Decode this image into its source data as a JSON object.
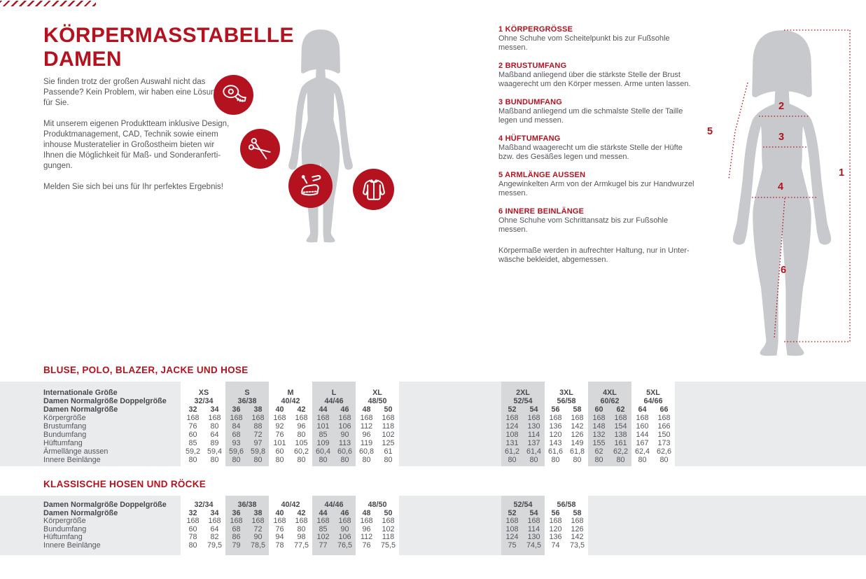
{
  "colors": {
    "accent_red": "#b5121f",
    "body_text": "#54565a",
    "silhouette_gray": "#c7c9cc",
    "band_light": "#eaebed",
    "band_shade": "#d6d8da"
  },
  "title": {
    "line1": "KÖRPERMASSTABELLE",
    "line2": "DAMEN"
  },
  "intro": {
    "p1": "Sie finden trotz der großen Auswahl nicht das\nPassende? Kein Problem, wir haben eine Lösung\nfür Sie.",
    "p2": "Mit unserem eigenen Produktteam inklusive Design,\nProduktmanagement, CAD, Technik sowie einem\ninhouse Musteratelier in Großostheim bieten wir\nIhnen die Möglichkeit für Maß- und Sonderanferti-\ngungen.",
    "p3": "Melden Sie sich bei uns für Ihr perfektes Ergebnis!"
  },
  "icons": [
    "measuring-tape-icon",
    "scissors-icon",
    "sewing-pattern-icon",
    "jacket-icon"
  ],
  "instructions": {
    "items": [
      {
        "num": "1",
        "title": "KÖRPERGRÖSSE",
        "text": "Ohne Schuhe vom Scheitelpunkt bis zur Fußsohle messen."
      },
      {
        "num": "2",
        "title": "BRUSTUMFANG",
        "text": "Maßband anliegend über die stärkste Stelle der Brust\nwaagerecht um den Körper messen. Arme unten lassen."
      },
      {
        "num": "3",
        "title": "BUNDUMFANG",
        "text": "Maßband anliegend um die schmalste Stelle der Taille\nlegen und messen."
      },
      {
        "num": "4",
        "title": "HÜFTUMFANG",
        "text": "Maßband waagerecht um die stärkste Stelle der Hüfte\nbzw. des Gesäßes legen und messen."
      },
      {
        "num": "5",
        "title": "ARMLÄNGE AUSSEN",
        "text": "Angewinkelten Arm von der Armkugel bis zur Handwurzel\nmessen."
      },
      {
        "num": "6",
        "title": "INNERE BEINLÄNGE",
        "text": "Ohne Schuhe vom Schrittansatz bis zur Fußsohle messen."
      }
    ],
    "note": "Körpermaße werden in aufrechter Haltung, nur in Unter-\nwäsche bekleidet, abgemessen."
  },
  "diagram": {
    "labels": [
      "1",
      "2",
      "3",
      "4",
      "5",
      "6"
    ]
  },
  "table1": {
    "title": "BLUSE, POLO, BLAZER, JACKE UND HOSE",
    "bold_labels": 3,
    "row_labels": [
      "Internationale Größe",
      "Damen Normalgröße Doppelgröße",
      "Damen Normalgröße",
      "Körpergröße",
      "Brustumfang",
      "Bundumfang",
      "Hüftumfang",
      "Ärmellänge aussen",
      "Innere Beinlänge"
    ],
    "groups": [
      {
        "name": "XS",
        "double": "32/34",
        "sizes": [
          "32",
          "34"
        ],
        "data": [
          [
            "168",
            "168"
          ],
          [
            "76",
            "80"
          ],
          [
            "60",
            "64"
          ],
          [
            "85",
            "89"
          ],
          [
            "59,2",
            "59,4"
          ],
          [
            "80",
            "80"
          ]
        ]
      },
      {
        "name": "S",
        "double": "36/38",
        "sizes": [
          "36",
          "38"
        ],
        "data": [
          [
            "168",
            "168"
          ],
          [
            "84",
            "88"
          ],
          [
            "68",
            "72"
          ],
          [
            "93",
            "97"
          ],
          [
            "59,6",
            "59,8"
          ],
          [
            "80",
            "80"
          ]
        ]
      },
      {
        "name": "M",
        "double": "40/42",
        "sizes": [
          "40",
          "42"
        ],
        "data": [
          [
            "168",
            "168"
          ],
          [
            "92",
            "96"
          ],
          [
            "76",
            "80"
          ],
          [
            "101",
            "105"
          ],
          [
            "60",
            "60,2"
          ],
          [
            "80",
            "80"
          ]
        ]
      },
      {
        "name": "L",
        "double": "44/46",
        "sizes": [
          "44",
          "46"
        ],
        "data": [
          [
            "168",
            "168"
          ],
          [
            "101",
            "106"
          ],
          [
            "85",
            "90"
          ],
          [
            "109",
            "113"
          ],
          [
            "60,4",
            "60,6"
          ],
          [
            "80",
            "80"
          ]
        ]
      },
      {
        "name": "XL",
        "double": "48/50",
        "sizes": [
          "48",
          "50"
        ],
        "data": [
          [
            "168",
            "168"
          ],
          [
            "112",
            "118"
          ],
          [
            "96",
            "102"
          ],
          [
            "119",
            "125"
          ],
          [
            "60,8",
            "61"
          ],
          [
            "80",
            "80"
          ]
        ]
      },
      {
        "name": "2XL",
        "double": "52/54",
        "sizes": [
          "52",
          "54"
        ],
        "data": [
          [
            "168",
            "168"
          ],
          [
            "124",
            "130"
          ],
          [
            "108",
            "114"
          ],
          [
            "131",
            "137"
          ],
          [
            "61,2",
            "61,4"
          ],
          [
            "80",
            "80"
          ]
        ]
      },
      {
        "name": "3XL",
        "double": "56/58",
        "sizes": [
          "56",
          "58"
        ],
        "data": [
          [
            "168",
            "168"
          ],
          [
            "136",
            "142"
          ],
          [
            "120",
            "126"
          ],
          [
            "143",
            "149"
          ],
          [
            "61,6",
            "61,8"
          ],
          [
            "80",
            "80"
          ]
        ]
      },
      {
        "name": "4XL",
        "double": "60/62",
        "sizes": [
          "60",
          "62"
        ],
        "data": [
          [
            "168",
            "168"
          ],
          [
            "148",
            "154"
          ],
          [
            "132",
            "138"
          ],
          [
            "155",
            "161"
          ],
          [
            "62",
            "62,2"
          ],
          [
            "80",
            "80"
          ]
        ]
      },
      {
        "name": "5XL",
        "double": "64/66",
        "sizes": [
          "64",
          "66"
        ],
        "data": [
          [
            "168",
            "168"
          ],
          [
            "160",
            "166"
          ],
          [
            "144",
            "150"
          ],
          [
            "167",
            "173"
          ],
          [
            "62,4",
            "62,6"
          ],
          [
            "80",
            "80"
          ]
        ]
      }
    ]
  },
  "table2": {
    "title": "KLASSISCHE HOSEN UND RÖCKE",
    "bold_labels": 2,
    "row_labels": [
      "Damen Normalgröße Doppelgröße",
      "Damen Normalgröße",
      "Körpergröße",
      "Bundumfang",
      "Hüftumfang",
      "Innere Beinlänge"
    ],
    "groups": [
      {
        "double": "32/34",
        "sizes": [
          "32",
          "34"
        ],
        "data": [
          [
            "168",
            "168"
          ],
          [
            "60",
            "64"
          ],
          [
            "78",
            "82"
          ],
          [
            "80",
            "79,5"
          ]
        ]
      },
      {
        "double": "36/38",
        "sizes": [
          "36",
          "38"
        ],
        "data": [
          [
            "168",
            "168"
          ],
          [
            "68",
            "72"
          ],
          [
            "86",
            "90"
          ],
          [
            "79",
            "78,5"
          ]
        ]
      },
      {
        "double": "40/42",
        "sizes": [
          "40",
          "42"
        ],
        "data": [
          [
            "168",
            "168"
          ],
          [
            "76",
            "80"
          ],
          [
            "94",
            "98"
          ],
          [
            "78",
            "77,5"
          ]
        ]
      },
      {
        "double": "44/46",
        "sizes": [
          "44",
          "46"
        ],
        "data": [
          [
            "168",
            "168"
          ],
          [
            "85",
            "90"
          ],
          [
            "102",
            "106"
          ],
          [
            "77",
            "76,5"
          ]
        ]
      },
      {
        "double": "48/50",
        "sizes": [
          "48",
          "50"
        ],
        "data": [
          [
            "168",
            "168"
          ],
          [
            "96",
            "102"
          ],
          [
            "112",
            "118"
          ],
          [
            "76",
            "75,5"
          ]
        ]
      },
      {
        "double": "52/54",
        "sizes": [
          "52",
          "54"
        ],
        "data": [
          [
            "168",
            "168"
          ],
          [
            "108",
            "114"
          ],
          [
            "124",
            "130"
          ],
          [
            "75",
            "74,5"
          ]
        ]
      },
      {
        "double": "56/58",
        "sizes": [
          "56",
          "58"
        ],
        "data": [
          [
            "168",
            "168"
          ],
          [
            "120",
            "126"
          ],
          [
            "136",
            "142"
          ],
          [
            "74",
            "73,5"
          ]
        ]
      }
    ]
  }
}
